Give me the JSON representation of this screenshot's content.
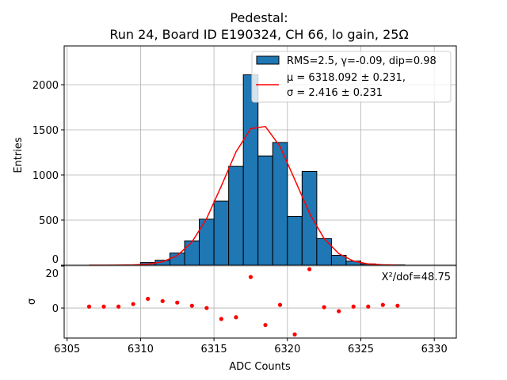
{
  "chart_data": [
    {
      "type": "bar",
      "title": "Pedestal:",
      "subtitle": "Run 24, Board ID E190324, CH 66, lo gain, 25Ω",
      "xlabel": "ADC Counts",
      "ylabel": "Entries",
      "xlim": [
        6304.8,
        6331.5
      ],
      "ylim": [
        0,
        2430
      ],
      "grid": true,
      "legend_position": "top-right",
      "xticks": [
        "6305",
        "6310",
        "6315",
        "6320",
        "6325",
        "6330"
      ],
      "yticks": [
        "0",
        "500",
        "1000",
        "1500",
        "2000"
      ],
      "bin_edges": [
        6310,
        6311,
        6312,
        6313,
        6314,
        6315,
        6316,
        6317,
        6318,
        6319,
        6320,
        6321,
        6322,
        6323,
        6324,
        6325,
        6326,
        6327,
        6328
      ],
      "values": [
        30,
        55,
        135,
        270,
        510,
        710,
        1095,
        2110,
        1210,
        1360,
        540,
        1040,
        295,
        110,
        45,
        15,
        5,
        3
      ],
      "bar_color": "#1f77b4",
      "series": [
        {
          "name": "RMS=2.5, γ=-0.09, dip=0.98",
          "kind": "histogram"
        },
        {
          "name": "μ = 6318.092 ± 0.231,",
          "name_line2": "σ = 2.416 ± 0.231",
          "kind": "line",
          "color": "#ff0000",
          "x": [
            6306.5,
            6307.5,
            6308.5,
            6309.5,
            6310.5,
            6311.5,
            6312.5,
            6313.5,
            6314.5,
            6315.5,
            6316.5,
            6317.5,
            6318.5,
            6319.5,
            6320.5,
            6321.5,
            6322.5,
            6323.5,
            6324.5,
            6325.5,
            6326.5,
            6327.5
          ],
          "y": [
            0,
            0,
            1,
            3,
            11,
            38,
            107,
            256,
            517,
            877,
            1256,
            1513,
            1537,
            1316,
            949,
            577,
            295,
            128,
            46,
            14,
            4,
            1
          ]
        }
      ]
    },
    {
      "type": "scatter",
      "xlabel": "ADC Counts",
      "ylabel": "σ",
      "xlim": [
        6304.8,
        6331.5
      ],
      "ylim": [
        -14.3,
        20.4
      ],
      "yticks": [
        "0",
        "20"
      ],
      "annotation": "X²/dof=48.75",
      "color": "#ff0000",
      "x": [
        6306.5,
        6307.5,
        6308.5,
        6309.5,
        6310.5,
        6311.5,
        6312.5,
        6313.5,
        6314.5,
        6315.5,
        6316.5,
        6317.5,
        6318.5,
        6319.5,
        6320.5,
        6321.5,
        6322.5,
        6323.5,
        6324.5,
        6325.5,
        6326.5,
        6327.5
      ],
      "y": [
        0.7,
        0.7,
        0.7,
        1.9,
        4.4,
        3.3,
        2.6,
        1.1,
        0,
        -5.2,
        -4.4,
        14.8,
        -8.1,
        1.5,
        -12.6,
        18.5,
        0.4,
        -1.5,
        0.7,
        0.7,
        1.5,
        1.1
      ]
    }
  ]
}
